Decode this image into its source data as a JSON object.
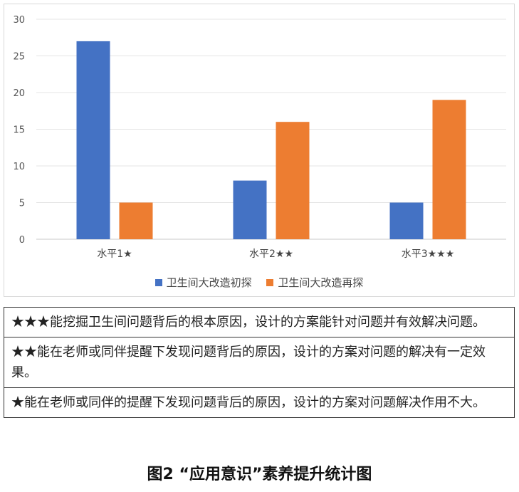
{
  "chart_data": {
    "type": "bar",
    "categories": [
      "水平1★",
      "水平2★★",
      "水平3★★★"
    ],
    "series": [
      {
        "name": "卫生间大改造初探",
        "values": [
          27,
          8,
          5
        ],
        "color": "#4472C4"
      },
      {
        "name": "卫生间大改造再探",
        "values": [
          5,
          16,
          19
        ],
        "color": "#ED7D31"
      }
    ],
    "yticks": [
      "0",
      "5",
      "10",
      "15",
      "20",
      "25",
      "30"
    ],
    "ylim": [
      0,
      30
    ],
    "grid": true,
    "legend_position": "bottom"
  },
  "levels": [
    "★★★能挖掘卫生间问题背后的根本原因，设计的方案能针对问题并有效解决问题。",
    "★★能在老师或同伴提醒下发现问题背后的原因，设计的方案对问题的解决有一定效果。",
    "★能在老师或同伴的提醒下发现问题背后的原因，设计的方案对问题解决作用不大。"
  ],
  "caption": "图2 “应用意识”素养提升统计图"
}
